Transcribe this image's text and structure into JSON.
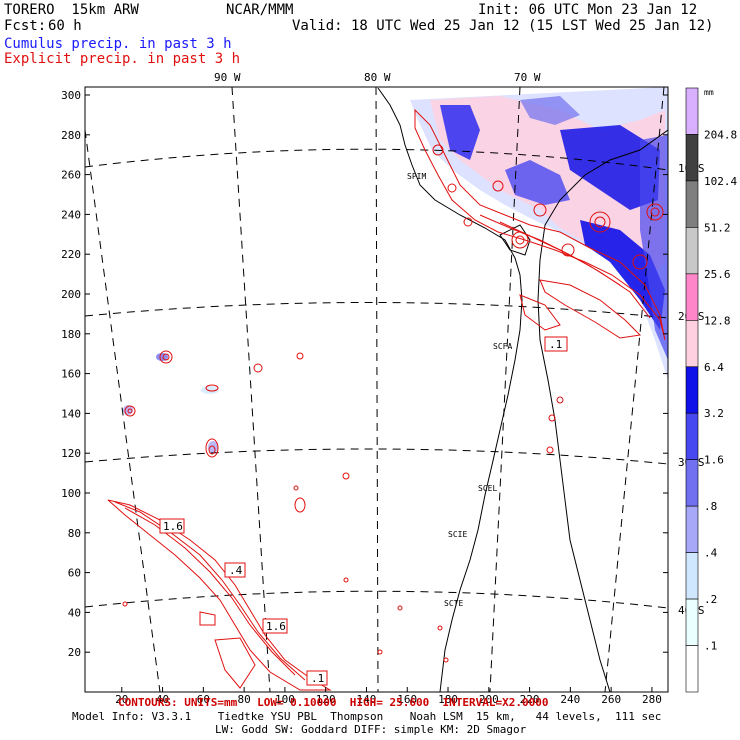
{
  "header": {
    "model": "TORERO  15km ARW",
    "center": "NCAR/MMM",
    "init": "Init: 06 UTC Mon 23 Jan 12",
    "fcst_label": "Fcst:",
    "fcst_value": "60 h",
    "valid": "Valid: 18 UTC Wed 25 Jan 12 (15 LST Wed 25 Jan 12)",
    "cumulus": "Cumulus precip. in past 3 h",
    "explicit": "Explicit precip. in past 3 h"
  },
  "colors": {
    "cumulus_text": "#1a1aff",
    "explicit_text": "#e01010",
    "contour": "#e01010"
  },
  "map": {
    "lon_labels": [
      "90 W",
      "80 W",
      "70 W"
    ],
    "lat_labels": [
      "10 S",
      "20 S",
      "30 S",
      "40 S"
    ],
    "y_ticks": [
      "20",
      "40",
      "60",
      "80",
      "100",
      "120",
      "140",
      "160",
      "180",
      "200",
      "220",
      "240",
      "260",
      "280",
      "300"
    ],
    "x_ticks": [
      "20",
      "40",
      "60",
      "80",
      "100",
      "120",
      "140",
      "160",
      "180",
      "200",
      "220",
      "240",
      "260",
      "280"
    ],
    "stations": [
      "SPIM",
      "SCFA",
      "SCEL",
      "SCIE",
      "SCTE"
    ],
    "contour_labels": [
      ".1",
      "1.6",
      ".4",
      "1.6",
      ".1"
    ]
  },
  "colorbar": {
    "unit": "mm",
    "labels": [
      "204.8",
      "102.4",
      "51.2",
      "25.6",
      "12.8",
      "6.4",
      "3.2",
      "1.6",
      ".8",
      ".4",
      ".2",
      ".1"
    ],
    "colors": [
      "#d8b0ff",
      "#404040",
      "#7f7f7f",
      "#c8c8c8",
      "#ff86c8",
      "#ffd0e0",
      "#1010e8",
      "#4848f0",
      "#7070f0",
      "#a8a8f8",
      "#d0e8ff",
      "#eaffff",
      "#ffffff"
    ]
  },
  "footer": {
    "contours": "CONTOURS: UNITS=mm   LOW= 0.10000  HIGH= 25.600  INTERVAL=X2.0000",
    "model_info": "Model Info: V3.3.1    Tiedtke YSU PBL  Thompson    Noah LSM  15 km,   44 levels,  111 sec",
    "model_info2": "LW: Godd SW: Goddard DIFF: simple KM: 2D Smagor"
  }
}
